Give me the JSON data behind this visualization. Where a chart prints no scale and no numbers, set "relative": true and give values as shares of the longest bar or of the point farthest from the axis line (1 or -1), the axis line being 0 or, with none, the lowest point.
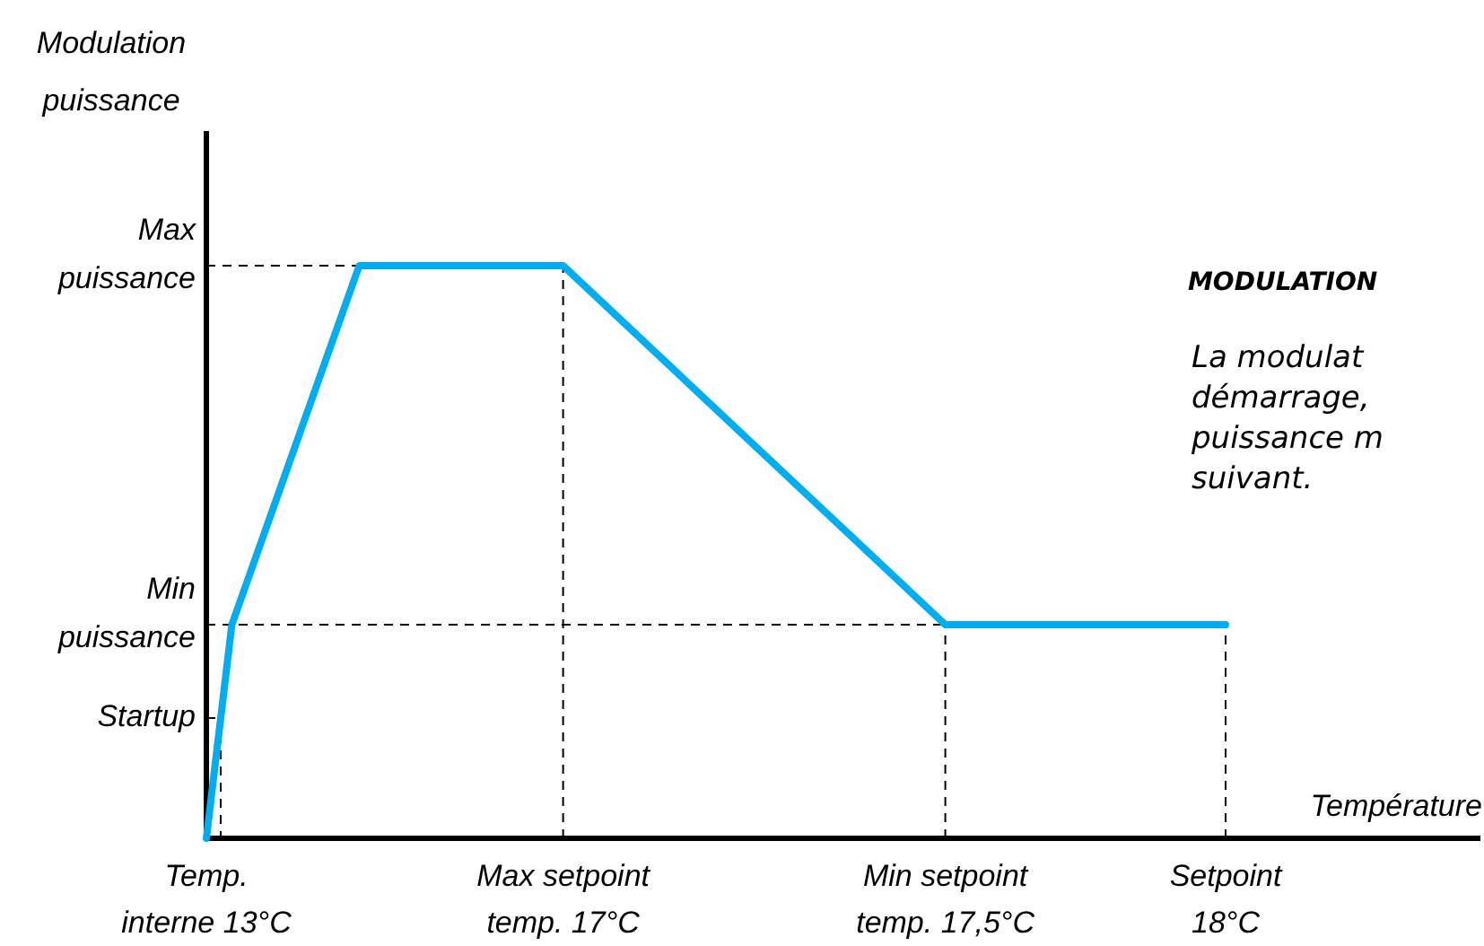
{
  "chart_data": {
    "type": "line",
    "relative": true,
    "ylabel": "Modulation\npuissance",
    "xlabel": "Température",
    "categories": [
      "Temp.\ninterne 13°C",
      null,
      null,
      null,
      null,
      null,
      null,
      null,
      null,
      null,
      null,
      null,
      null,
      null,
      "Max setpoint\ntemp. 17°C",
      null,
      null,
      null,
      null,
      null,
      null,
      null,
      null,
      null,
      null,
      null,
      null,
      null,
      null,
      "Min setpoint\ntemp. 17,5°C",
      null,
      null,
      null,
      null,
      null,
      null,
      null,
      null,
      null,
      null,
      "Setpoint\n18°C",
      null,
      null,
      null,
      null,
      null,
      null,
      null,
      null,
      null,
      null
    ],
    "series": [
      {
        "color": "#00aeef",
        "values": [
          0,
          0.373,
          null,
          null,
          null,
          null,
          1,
          null,
          null,
          null,
          null,
          null,
          null,
          null,
          1,
          null,
          null,
          null,
          null,
          null,
          null,
          null,
          null,
          null,
          null,
          null,
          null,
          null,
          null,
          0.373,
          null,
          null,
          null,
          null,
          null,
          null,
          null,
          null,
          null,
          null,
          0.373,
          null,
          null,
          null,
          null,
          null,
          null,
          null,
          null,
          null,
          null
        ]
      }
    ],
    "ref_lines": [
      {
        "axis": "y",
        "value": 1,
        "label": "Max\npuissance",
        "line_style": "dashed"
      },
      {
        "axis": "y",
        "value": 0.373,
        "label": "Min\npuissance",
        "line_style": "dashed"
      },
      {
        "axis": "y",
        "value": 0.21,
        "label": "Startup",
        "line_style": "dashed"
      },
      {
        "axis": "x",
        "value": "Max setpoint\ntemp. 17°C",
        "line_style": "dashed"
      },
      {
        "axis": "x",
        "value": "Min setpoint\ntemp. 17,5°C",
        "line_style": "dashed"
      },
      {
        "axis": "x",
        "value": "Setpoint\n18°C",
        "line_style": "dashed"
      }
    ],
    "annotations": [
      "MODULATION",
      "La modulat\ndémarrage,\npuissance m\nsuivant."
    ],
    "legend": false,
    "marker": "none",
    "line_style": "solid",
    "grid": false
  }
}
